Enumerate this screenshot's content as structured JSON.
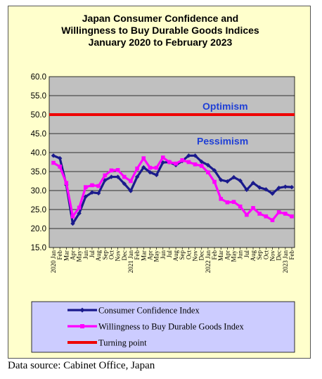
{
  "chart_data": {
    "type": "line",
    "title": [
      "Japan Consumer Confidence and",
      "Willingness to Buy Durable Goods Indices",
      "January 2020 to February 2023"
    ],
    "ylim": [
      15,
      60
    ],
    "yticks": [
      "15.0",
      "20.0",
      "25.0",
      "30.0",
      "35.0",
      "40.0",
      "45.0",
      "50.0",
      "55.0",
      "60.0"
    ],
    "grid": true,
    "x": [
      "2020 Jan",
      "Feb",
      "Mar",
      "Apr",
      "May",
      "Jun",
      "Jul",
      "Aug",
      "Sep",
      "Oct",
      "Nov",
      "Dec",
      "2021 Jan",
      "Feb",
      "Mar",
      "Apr",
      "May",
      "Jun",
      "Jul",
      "Aug",
      "Sep",
      "Oct",
      "Nov",
      "Dec",
      "2022 Jan",
      "Feb",
      "Mar",
      "Apr",
      "May",
      "Jun",
      "Jul",
      "Aug",
      "Sep",
      "Oct",
      "Nov",
      "Dec",
      "2023 Jan",
      "Feb"
    ],
    "series": [
      {
        "name": "Consumer Confidence Index",
        "color": "#1a1a8c",
        "marker": "diamond",
        "values": [
          39.2,
          38.5,
          31.5,
          21.3,
          24.0,
          28.4,
          29.5,
          29.3,
          32.7,
          33.6,
          33.6,
          31.8,
          29.9,
          33.6,
          36.1,
          34.8,
          34.1,
          37.4,
          37.5,
          36.7,
          37.8,
          39.2,
          39.2,
          37.6,
          36.7,
          35.3,
          32.8,
          32.4,
          33.5,
          32.6,
          30.2,
          32.0,
          30.8,
          30.3,
          29.2,
          30.7,
          31.0,
          30.9
        ]
      },
      {
        "name": "Willingness to Buy Durable Goods Index",
        "color": "#ff00ff",
        "marker": "square",
        "values": [
          37.3,
          36.3,
          32.0,
          23.2,
          25.5,
          30.9,
          31.4,
          31.2,
          34.0,
          35.3,
          35.4,
          33.6,
          32.5,
          35.8,
          38.5,
          36.0,
          36.0,
          38.7,
          37.5,
          37.1,
          38.0,
          37.5,
          36.9,
          36.5,
          34.8,
          32.3,
          27.8,
          26.9,
          27.0,
          25.8,
          23.6,
          25.4,
          23.9,
          23.2,
          22.2,
          24.3,
          23.9,
          23.2
        ]
      },
      {
        "name": "Turning point",
        "color": "#ee0000",
        "marker": "none",
        "values_constant": 50.0
      }
    ],
    "annotations": [
      {
        "text": "Optimism"
      },
      {
        "text": "Pessimism"
      }
    ],
    "legend": "bottom"
  },
  "colors": {
    "frame_background": "#ffffcc",
    "plot_background": "#c0c0c0",
    "legend_background": "#ccccff",
    "annotation_text": "#1f3fd6"
  },
  "source_note": "Data source: Cabinet Office, Japan"
}
